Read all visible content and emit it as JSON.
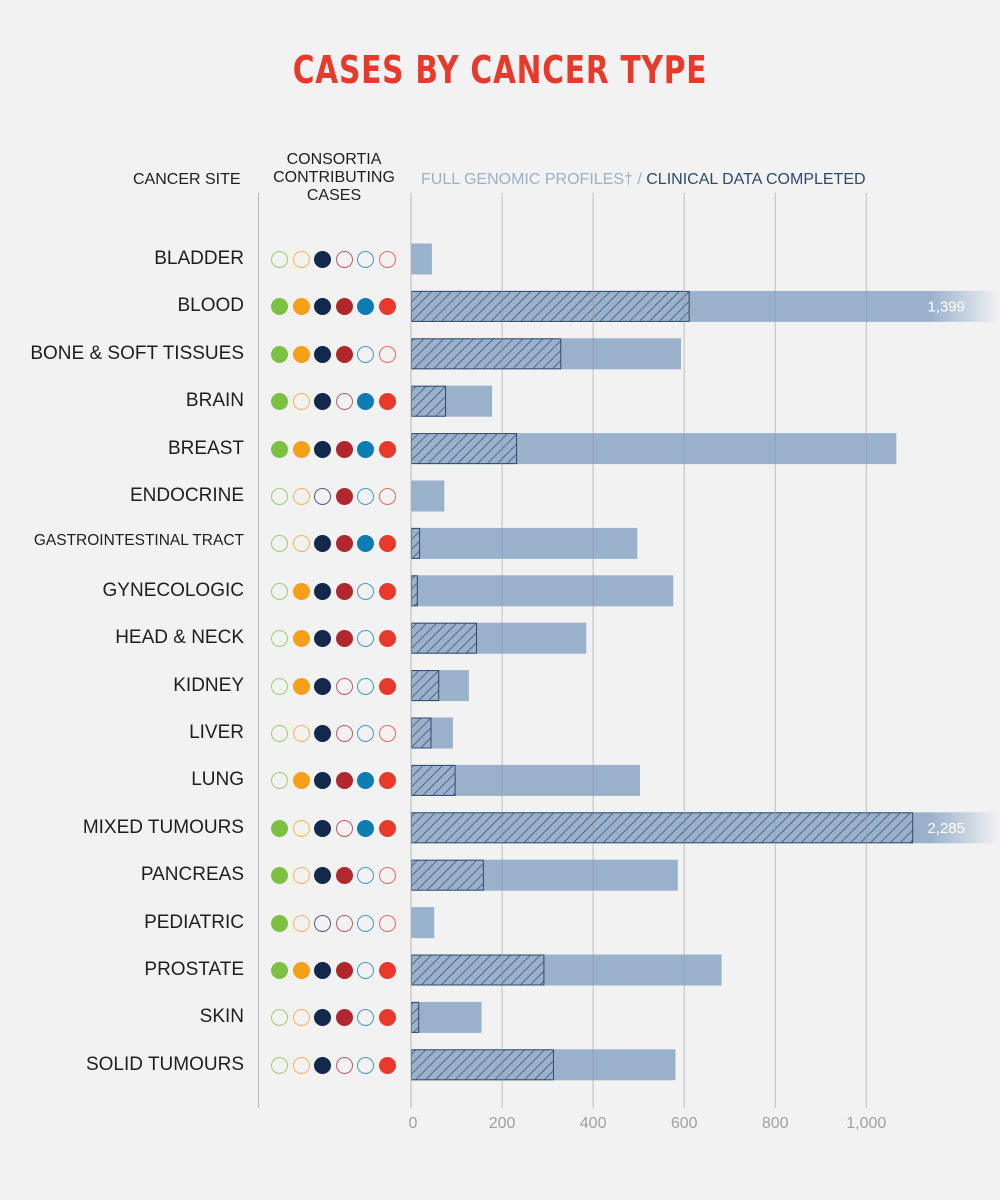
{
  "title": "CASES BY CANCER TYPE",
  "headers": {
    "cancer_site": "CANCER SITE",
    "consortia_line1": "CONSORTIA",
    "consortia_line2": "CONTRIBUTING",
    "consortia_line3": "CASES",
    "legend_full": "FULL GENOMIC PROFILES†",
    "legend_sep": " / ",
    "legend_clinical": "CLINICAL DATA COMPLETED"
  },
  "consortia_colors": [
    "#7dc142",
    "#f6a01a",
    "#12294c",
    "#b0282e",
    "#0a7db3",
    "#e8392b"
  ],
  "colors": {
    "full_bar": "#9ab1cc",
    "clinical_hatch": "#2c4a6e",
    "title": "#e8392b",
    "gridline": "#b8b8b8"
  },
  "chart_data": {
    "type": "bar",
    "orientation": "horizontal",
    "title": "CASES BY CANCER TYPE",
    "xlabel": "",
    "ylabel": "CANCER SITE",
    "xlim": [
      0,
      1250
    ],
    "xticks": [
      0,
      200,
      400,
      600,
      800,
      1000
    ],
    "xtick_labels": [
      "0",
      "200",
      "400",
      "600",
      "800",
      "1,000"
    ],
    "grid": true,
    "categories": [
      "BLADDER",
      "BLOOD",
      "BONE & SOFT TISSUES",
      "BRAIN",
      "BREAST",
      "ENDOCRINE",
      "GASTROINTESTINAL TRACT",
      "GYNECOLOGIC",
      "HEAD & NECK",
      "KIDNEY",
      "LIVER",
      "LUNG",
      "MIXED TUMOURS",
      "PANCREAS",
      "PEDIATRIC",
      "PROSTATE",
      "SKIN",
      "SOLID TUMOURS"
    ],
    "series": [
      {
        "name": "FULL GENOMIC PROFILES†",
        "values": [
          46,
          1399,
          593,
          178,
          1066,
          73,
          497,
          576,
          385,
          127,
          92,
          503,
          2285,
          586,
          51,
          682,
          155,
          581
        ]
      },
      {
        "name": "CLINICAL DATA COMPLETED",
        "values": [
          0,
          612,
          330,
          77,
          233,
          0,
          20,
          15,
          145,
          62,
          45,
          98,
          1103,
          160,
          0,
          293,
          18,
          314
        ]
      }
    ],
    "value_labels": {
      "1": "1,399",
      "12": "2,285"
    },
    "truncated_bars": [
      1,
      12
    ]
  },
  "rows": [
    {
      "site": "BLADDER",
      "consortia": [
        0,
        0,
        1,
        0,
        0,
        0
      ]
    },
    {
      "site": "BLOOD",
      "consortia": [
        1,
        1,
        1,
        1,
        1,
        1
      ]
    },
    {
      "site": "BONE & SOFT TISSUES",
      "consortia": [
        1,
        1,
        1,
        1,
        0,
        0
      ]
    },
    {
      "site": "BRAIN",
      "consortia": [
        1,
        0,
        1,
        0,
        1,
        1
      ]
    },
    {
      "site": "BREAST",
      "consortia": [
        1,
        1,
        1,
        1,
        1,
        1
      ]
    },
    {
      "site": "ENDOCRINE",
      "consortia": [
        0,
        0,
        0,
        1,
        0,
        0
      ]
    },
    {
      "site": "GASTROINTESTINAL TRACT",
      "consortia": [
        0,
        0,
        1,
        1,
        1,
        1
      ]
    },
    {
      "site": "GYNECOLOGIC",
      "consortia": [
        0,
        1,
        1,
        1,
        0,
        1
      ]
    },
    {
      "site": "HEAD & NECK",
      "consortia": [
        0,
        1,
        1,
        1,
        0,
        1
      ]
    },
    {
      "site": "KIDNEY",
      "consortia": [
        0,
        1,
        1,
        0,
        0,
        1
      ]
    },
    {
      "site": "LIVER",
      "consortia": [
        0,
        0,
        1,
        0,
        0,
        0
      ]
    },
    {
      "site": "LUNG",
      "consortia": [
        0,
        1,
        1,
        1,
        1,
        1
      ]
    },
    {
      "site": "MIXED TUMOURS",
      "consortia": [
        1,
        0,
        1,
        0,
        1,
        1
      ]
    },
    {
      "site": "PANCREAS",
      "consortia": [
        1,
        0,
        1,
        1,
        0,
        0
      ]
    },
    {
      "site": "PEDIATRIC",
      "consortia": [
        1,
        0,
        0,
        0,
        0,
        0
      ]
    },
    {
      "site": "PROSTATE",
      "consortia": [
        1,
        1,
        1,
        1,
        0,
        1
      ]
    },
    {
      "site": "SKIN",
      "consortia": [
        0,
        0,
        1,
        1,
        0,
        1
      ]
    },
    {
      "site": "SOLID TUMOURS",
      "consortia": [
        0,
        0,
        1,
        0,
        0,
        1
      ]
    }
  ]
}
